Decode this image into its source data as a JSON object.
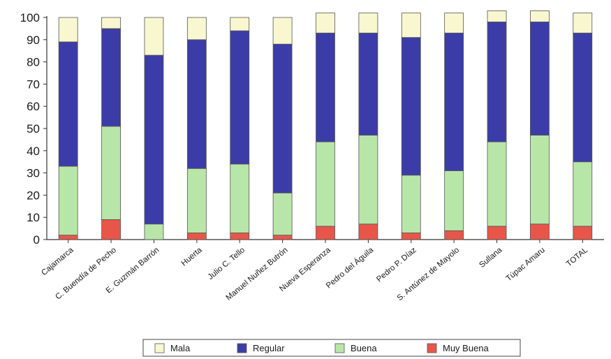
{
  "chart_data": {
    "type": "bar",
    "stacked": true,
    "categories": [
      "Cajamarca",
      "C. Buendía de Pecho",
      "E. Guzmán Barrón",
      "Huerta",
      "Julio C. Tello",
      "Manuel Nuñez Butrón",
      "Nueva Esperanza",
      "Pedro del Águila",
      "Pedro P. Díaz",
      "S. Antúnez de Mayolo",
      "Sullana",
      "Túpac Amaru",
      "TOTAL"
    ],
    "series": [
      {
        "name": "Muy Buena",
        "color": "#e8564a",
        "values": [
          2,
          9,
          0,
          3,
          3,
          2,
          6,
          7,
          3,
          4,
          6,
          7,
          6
        ]
      },
      {
        "name": "Buena",
        "color": "#b8e6a8",
        "values": [
          31,
          42,
          7,
          29,
          31,
          19,
          38,
          40,
          26,
          27,
          38,
          40,
          29
        ]
      },
      {
        "name": "Regular",
        "color": "#3c3ca8",
        "values": [
          56,
          44,
          76,
          58,
          60,
          67,
          49,
          46,
          62,
          62,
          54,
          51,
          58
        ]
      },
      {
        "name": "Mala",
        "color": "#f9f7cf",
        "values": [
          11,
          5,
          17,
          10,
          6,
          12,
          9,
          9,
          11,
          9,
          5,
          5,
          9
        ]
      }
    ],
    "legend_order": [
      "Mala",
      "Regular",
      "Buena",
      "Muy Buena"
    ],
    "y_ticks": [
      "0",
      "10",
      "20",
      "30",
      "40",
      "50",
      "60",
      "70",
      "80",
      "90",
      "100"
    ],
    "ylim": [
      0,
      100
    ],
    "legend_position": "bottom",
    "grid": false
  }
}
